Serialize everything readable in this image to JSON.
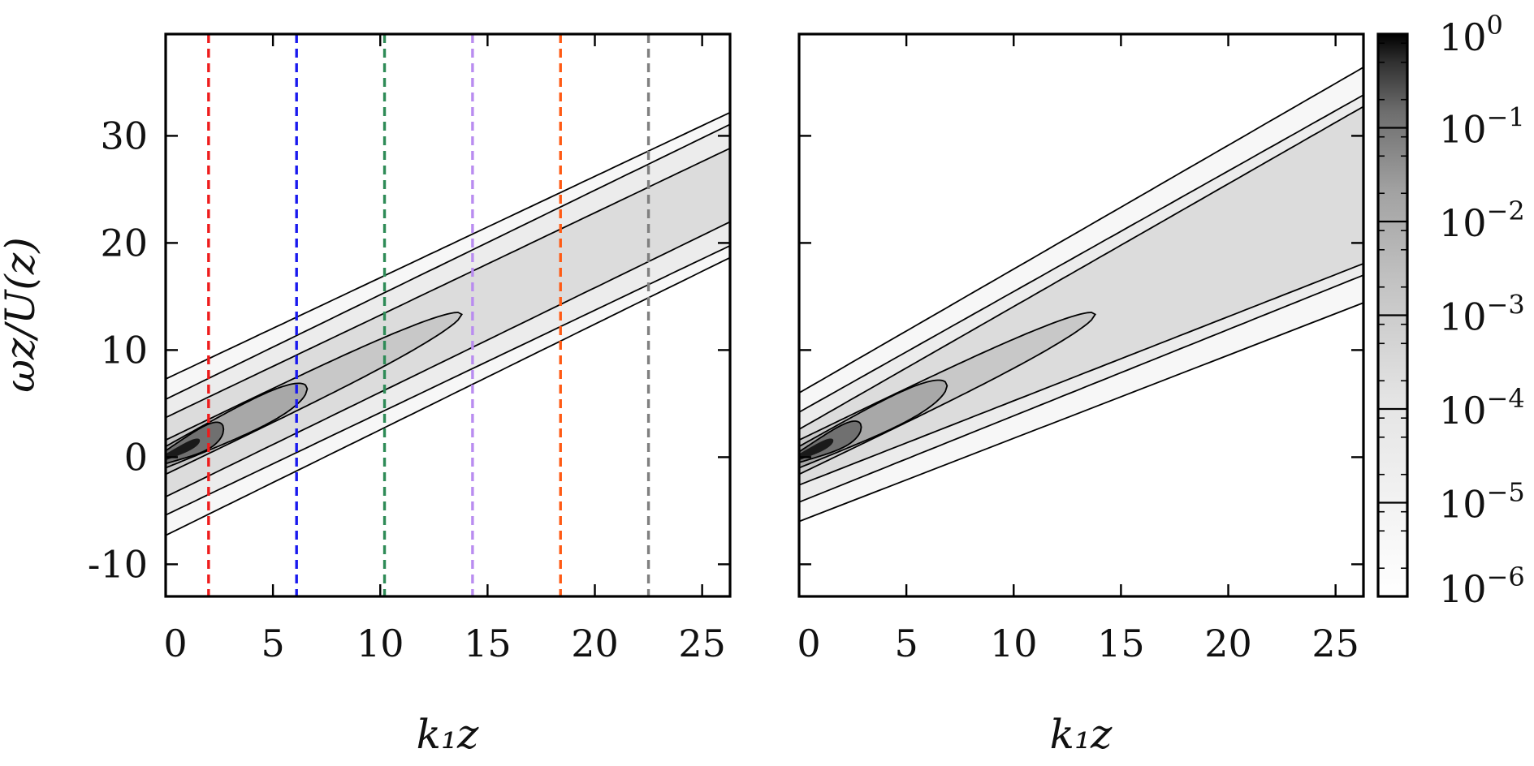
{
  "chart_data": [
    {
      "type": "heatmap",
      "panel": "left",
      "xlabel": "k₁z",
      "ylabel": "ωz/U(z)",
      "xlim": [
        0,
        26.3
      ],
      "ylim": [
        -13,
        39.5
      ],
      "xticks": [
        0,
        5,
        10,
        15,
        20,
        25
      ],
      "yticks": [
        -10,
        0,
        10,
        20,
        30
      ],
      "xticklabels": [
        "0",
        "5",
        "10",
        "15",
        "20",
        "25"
      ],
      "yticklabels": [
        "-10",
        "0",
        "10",
        "20",
        "30"
      ],
      "ridge": {
        "intercept": 0,
        "slope": 0.966
      },
      "contour_levels": [
        {
          "level": "10^-1",
          "intercept_half_width": 0.6,
          "spread_slope": 0.39,
          "k_tip": 2.7
        },
        {
          "level": "10^-2",
          "intercept_half_width": 1.0,
          "spread_slope": 0.15,
          "k_tip": 6.6
        },
        {
          "level": "10^-3",
          "intercept_half_width": 1.6,
          "spread_slope": 0.0,
          "k_tip": 13.8
        },
        {
          "level": "10^-4",
          "intercept_half_width": 3.7,
          "spread_slope": -0.01
        },
        {
          "level": "10^-5",
          "intercept_half_width": 5.4,
          "spread_slope": 0.01
        },
        {
          "level": "10^-6",
          "intercept_half_width": 7.3,
          "spread_slope": -0.02
        }
      ],
      "vertical_lines": [
        {
          "x": 2.0,
          "color": "#ee1c1c"
        },
        {
          "x": 6.1,
          "color": "#1a1aee"
        },
        {
          "x": 10.2,
          "color": "#2e8b57"
        },
        {
          "x": 14.3,
          "color": "#b98cf0"
        },
        {
          "x": 18.4,
          "color": "#ff5a14"
        },
        {
          "x": 22.5,
          "color": "#808080"
        }
      ]
    },
    {
      "type": "heatmap",
      "panel": "right",
      "xlabel": "k₁z",
      "xlim": [
        0,
        26.3
      ],
      "ylim": [
        -13,
        39.5
      ],
      "xticks": [
        0,
        5,
        10,
        15,
        20,
        25
      ],
      "xticklabels": [
        "0",
        "5",
        "10",
        "15",
        "20",
        "25"
      ],
      "ridge": {
        "intercept": 0,
        "slope": 0.966
      },
      "contour_levels": [
        {
          "level": "10^-1",
          "intercept_half_width": 0.5,
          "spread_slope": 0.36,
          "k_tip": 2.9
        },
        {
          "level": "10^-2",
          "intercept_half_width": 1.0,
          "spread_slope": 0.15,
          "k_tip": 6.9
        },
        {
          "level": "10^-3",
          "intercept_half_width": 1.6,
          "spread_slope": 0.0,
          "k_tip": 13.8
        },
        {
          "level": "10^-4",
          "intercept_half_width": 2.6,
          "spread_slope": 0.18
        },
        {
          "level": "10^-5",
          "intercept_half_width": 4.2,
          "spread_slope": 0.16
        },
        {
          "level": "10^-6",
          "intercept_half_width": 6.0,
          "spread_slope": 0.19
        }
      ]
    }
  ],
  "colorbar": {
    "scale": "log",
    "range": [
      1e-06,
      1
    ],
    "labels": [
      {
        "base": "10",
        "exp": "0",
        "value": 1
      },
      {
        "base": "10",
        "exp": "−1",
        "value": 0.1
      },
      {
        "base": "10",
        "exp": "−2",
        "value": 0.01
      },
      {
        "base": "10",
        "exp": "−3",
        "value": 0.001
      },
      {
        "base": "10",
        "exp": "−4",
        "value": 0.0001
      },
      {
        "base": "10",
        "exp": "−5",
        "value": 1e-05
      },
      {
        "base": "10",
        "exp": "−6",
        "value": 1e-06
      }
    ],
    "colors": {
      "high": "#000000",
      "mid": "#b4b4b4",
      "low": "#ffffff"
    }
  }
}
